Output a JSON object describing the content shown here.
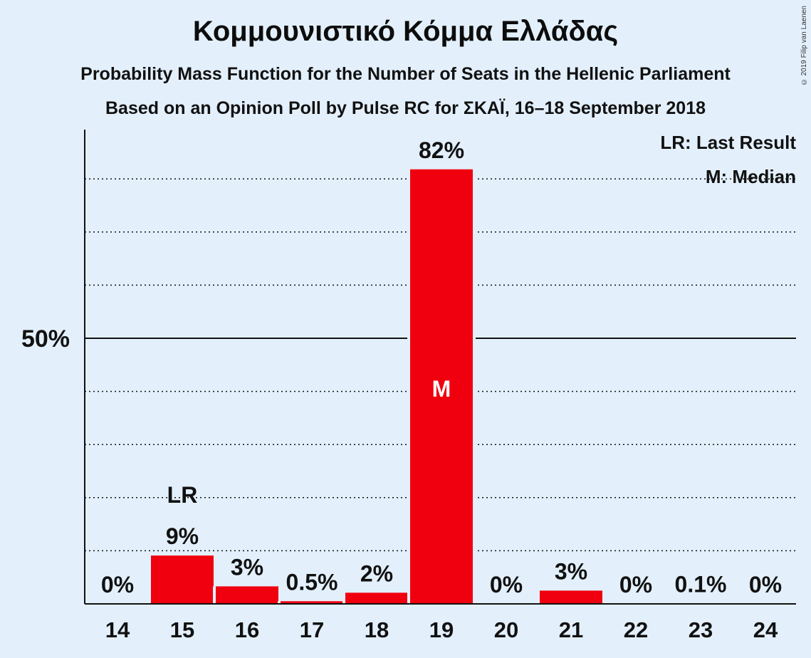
{
  "title": "Κομμουνιστικό Κόμμα Ελλάδας",
  "subtitle1": "Probability Mass Function for the Number of Seats in the Hellenic Parliament",
  "subtitle2": "Based on an Opinion Poll by Pulse RC for ΣΚΑΪ, 16–18 September 2018",
  "copyright": "© 2019 Filip van Laenen",
  "legend": {
    "last_result": "LR: Last Result",
    "median": "M: Median"
  },
  "colors": {
    "bar": "#F0000F",
    "background": "#E3F0FC"
  },
  "chart_data": {
    "type": "bar",
    "categories": [
      "14",
      "15",
      "16",
      "17",
      "18",
      "19",
      "20",
      "21",
      "22",
      "23",
      "24"
    ],
    "values": [
      0,
      9,
      3,
      0.5,
      2,
      82,
      0,
      3,
      0,
      0.1,
      0
    ],
    "value_labels": [
      "0%",
      "9%",
      "3%",
      "0.5%",
      "2%",
      "82%",
      "0%",
      "3%",
      "0%",
      "0.1%",
      "0%"
    ],
    "bar_heights_pct": [
      0,
      9.1,
      3.3,
      0.5,
      2.1,
      81.8,
      0,
      2.5,
      0,
      0.1,
      0
    ],
    "ylim": [
      0,
      90
    ],
    "y_ticks": [
      {
        "value": 50,
        "label": "50%"
      }
    ],
    "gridlines_dotted": [
      10,
      20,
      30,
      40,
      60,
      70,
      80
    ],
    "last_result_category": "15",
    "last_result_marker": "LR",
    "median_category": "19",
    "median_marker": "M",
    "xlabel": "",
    "ylabel": ""
  }
}
